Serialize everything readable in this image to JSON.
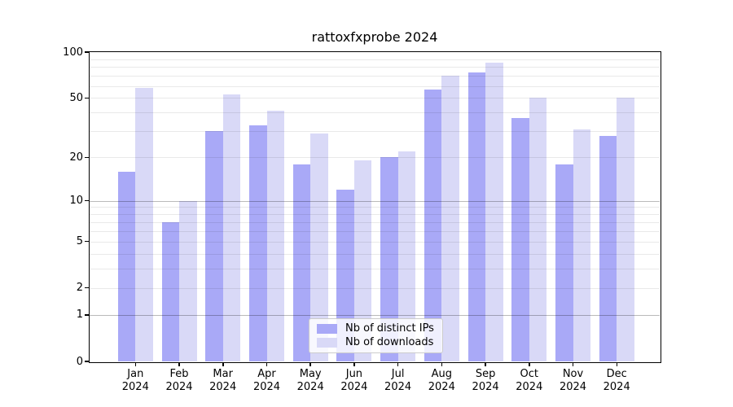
{
  "title": "rattoxfxprobe 2024",
  "legend": {
    "ips": "Nb of distinct IPs",
    "downloads": "Nb of downloads"
  },
  "colors": {
    "ips_bar": "#a9a9f7",
    "downloads_bar": "#d9d9f7",
    "axis": "#000000",
    "grid_minor": "rgba(0,0,0,0.085)",
    "grid_decade": "rgba(0,0,0,0.27)"
  },
  "chart_data": {
    "type": "bar",
    "title": "rattoxfxprobe 2024",
    "yscale": "log1p",
    "ylim": [
      0,
      100
    ],
    "grid": "on",
    "legend_position": "lower center",
    "categories": [
      "Jan",
      "Feb",
      "Mar",
      "Apr",
      "May",
      "Jun",
      "Jul",
      "Aug",
      "Sep",
      "Oct",
      "Nov",
      "Dec"
    ],
    "year": "2024",
    "series": [
      {
        "name": "Nb of distinct IPs",
        "color": "#a9a9f7",
        "values": [
          16,
          7,
          30,
          33,
          18,
          12,
          20,
          57,
          74,
          37,
          18,
          28
        ]
      },
      {
        "name": "Nb of downloads",
        "color": "#d9d9f7",
        "values": [
          58,
          10,
          53,
          41,
          29,
          19,
          22,
          70,
          85,
          50,
          31,
          50
        ]
      }
    ],
    "yticks": [
      100,
      50,
      20,
      10,
      5,
      2,
      1,
      0
    ],
    "grid_minor_values": [
      2,
      3,
      4,
      5,
      6,
      7,
      8,
      9,
      20,
      30,
      40,
      50,
      60,
      70,
      80,
      90
    ],
    "grid_decade_values": [
      1,
      10
    ]
  }
}
